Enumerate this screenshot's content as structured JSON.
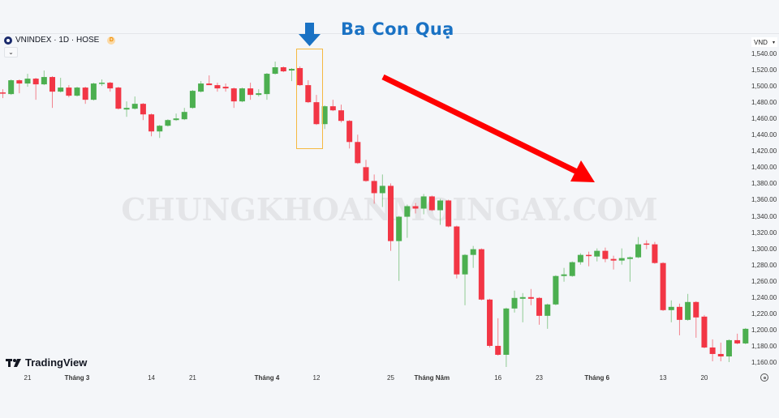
{
  "header": {
    "symbol": "VNINDEX · 1D · HOSE",
    "badge": "D",
    "collapse_icon": "chevron-down-icon",
    "currency": "VND"
  },
  "annotation": {
    "title": "Ba Con Quạ",
    "title_color": "#1a72c4",
    "highlight_box_color": "#f5b942",
    "trend_arrow_color": "#ff0000"
  },
  "watermark": "CHUNGKHOANMOINGAY.COM",
  "branding": {
    "logo_text": "TradingView"
  },
  "colors": {
    "up": "#4caf50",
    "down": "#f23645"
  },
  "chart_data": {
    "type": "candlestick",
    "ylim": [
      1160,
      1540
    ],
    "y_ticks": [
      "1,540.00",
      "1,520.00",
      "1,500.00",
      "1,480.00",
      "1,460.00",
      "1,440.00",
      "1,420.00",
      "1,400.00",
      "1,380.00",
      "1,360.00",
      "1,340.00",
      "1,320.00",
      "1,300.00",
      "1,280.00",
      "1,260.00",
      "1,240.00",
      "1,220.00",
      "1,200.00",
      "1,180.00",
      "1,160.00"
    ],
    "x_ticks": [
      {
        "label": "21",
        "index": 3,
        "major": false
      },
      {
        "label": "Tháng 3",
        "index": 9,
        "major": true
      },
      {
        "label": "14",
        "index": 18,
        "major": false
      },
      {
        "label": "21",
        "index": 23,
        "major": false
      },
      {
        "label": "Tháng 4",
        "index": 32,
        "major": true
      },
      {
        "label": "12",
        "index": 38,
        "major": false
      },
      {
        "label": "25",
        "index": 47,
        "major": false
      },
      {
        "label": "Tháng Năm",
        "index": 52,
        "major": true
      },
      {
        "label": "16",
        "index": 60,
        "major": false
      },
      {
        "label": "23",
        "index": 65,
        "major": false
      },
      {
        "label": "Tháng 6",
        "index": 72,
        "major": true
      },
      {
        "label": "13",
        "index": 80,
        "major": false
      },
      {
        "label": "20",
        "index": 85,
        "major": false
      }
    ],
    "ohlc": [
      [
        1493,
        1497,
        1486,
        1492
      ],
      [
        1491,
        1509,
        1490,
        1508
      ],
      [
        1508,
        1509,
        1492,
        1504
      ],
      [
        1504,
        1516,
        1500,
        1510
      ],
      [
        1510,
        1511,
        1484,
        1503
      ],
      [
        1503,
        1520,
        1502,
        1512
      ],
      [
        1512,
        1513,
        1474,
        1494
      ],
      [
        1494,
        1511,
        1493,
        1499
      ],
      [
        1499,
        1502,
        1487,
        1489
      ],
      [
        1489,
        1500,
        1488,
        1499
      ],
      [
        1499,
        1500,
        1479,
        1484
      ],
      [
        1484,
        1505,
        1483,
        1504
      ],
      [
        1504,
        1509,
        1501,
        1505
      ],
      [
        1505,
        1506,
        1494,
        1498
      ],
      [
        1499,
        1500,
        1472,
        1473
      ],
      [
        1472,
        1482,
        1463,
        1474
      ],
      [
        1473,
        1488,
        1472,
        1479
      ],
      [
        1479,
        1480,
        1459,
        1466
      ],
      [
        1466,
        1467,
        1439,
        1445
      ],
      [
        1445,
        1453,
        1437,
        1452
      ],
      [
        1452,
        1460,
        1451,
        1459
      ],
      [
        1459,
        1467,
        1458,
        1461
      ],
      [
        1460,
        1474,
        1459,
        1469
      ],
      [
        1474,
        1496,
        1473,
        1495
      ],
      [
        1494,
        1507,
        1493,
        1504
      ],
      [
        1504,
        1514,
        1503,
        1502
      ],
      [
        1502,
        1505,
        1494,
        1498
      ],
      [
        1500,
        1504,
        1494,
        1498
      ],
      [
        1498,
        1499,
        1474,
        1482
      ],
      [
        1482,
        1499,
        1481,
        1498
      ],
      [
        1498,
        1505,
        1484,
        1490
      ],
      [
        1490,
        1497,
        1488,
        1492
      ],
      [
        1491,
        1517,
        1484,
        1516
      ],
      [
        1516,
        1531,
        1515,
        1524
      ],
      [
        1524,
        1525,
        1518,
        1519
      ],
      [
        1520,
        1523,
        1507,
        1522
      ],
      [
        1523,
        1525,
        1501,
        1502
      ],
      [
        1502,
        1508,
        1480,
        1481
      ],
      [
        1481,
        1490,
        1453,
        1454
      ],
      [
        1454,
        1477,
        1448,
        1476
      ],
      [
        1476,
        1484,
        1470,
        1471
      ],
      [
        1471,
        1478,
        1456,
        1458
      ],
      [
        1458,
        1459,
        1424,
        1432
      ],
      [
        1432,
        1441,
        1405,
        1406
      ],
      [
        1401,
        1410,
        1383,
        1384
      ],
      [
        1384,
        1392,
        1356,
        1369
      ],
      [
        1369,
        1392,
        1352,
        1378
      ],
      [
        1378,
        1381,
        1298,
        1310
      ],
      [
        1310,
        1341,
        1261,
        1340
      ],
      [
        1340,
        1355,
        1314,
        1353
      ],
      [
        1353,
        1357,
        1344,
        1350
      ],
      [
        1350,
        1368,
        1343,
        1365
      ],
      [
        1365,
        1366,
        1347,
        1348
      ],
      [
        1348,
        1362,
        1330,
        1360
      ],
      [
        1360,
        1361,
        1327,
        1328
      ],
      [
        1328,
        1329,
        1264,
        1269
      ],
      [
        1269,
        1294,
        1231,
        1293
      ],
      [
        1293,
        1304,
        1277,
        1300
      ],
      [
        1300,
        1301,
        1237,
        1238
      ],
      [
        1238,
        1239,
        1179,
        1181
      ],
      [
        1181,
        1215,
        1169,
        1170
      ],
      [
        1170,
        1228,
        1155,
        1227
      ],
      [
        1227,
        1249,
        1222,
        1240
      ],
      [
        1239,
        1246,
        1210,
        1241
      ],
      [
        1241,
        1251,
        1231,
        1239
      ],
      [
        1240,
        1241,
        1207,
        1218
      ],
      [
        1218,
        1233,
        1202,
        1232
      ],
      [
        1232,
        1268,
        1231,
        1267
      ],
      [
        1267,
        1277,
        1260,
        1269
      ],
      [
        1267,
        1285,
        1266,
        1284
      ],
      [
        1284,
        1295,
        1281,
        1293
      ],
      [
        1293,
        1297,
        1279,
        1292
      ],
      [
        1291,
        1301,
        1285,
        1298
      ],
      [
        1298,
        1302,
        1284,
        1288
      ],
      [
        1288,
        1292,
        1275,
        1286
      ],
      [
        1286,
        1301,
        1281,
        1289
      ],
      [
        1288,
        1291,
        1260,
        1290
      ],
      [
        1290,
        1315,
        1289,
        1306
      ],
      [
        1307,
        1311,
        1300,
        1306
      ],
      [
        1306,
        1309,
        1282,
        1283
      ],
      [
        1283,
        1284,
        1224,
        1225
      ],
      [
        1225,
        1237,
        1210,
        1229
      ],
      [
        1229,
        1233,
        1194,
        1213
      ],
      [
        1213,
        1245,
        1212,
        1235
      ],
      [
        1235,
        1236,
        1191,
        1216
      ],
      [
        1217,
        1219,
        1178,
        1179
      ],
      [
        1179,
        1189,
        1162,
        1171
      ],
      [
        1171,
        1185,
        1162,
        1168
      ],
      [
        1168,
        1189,
        1161,
        1188
      ],
      [
        1188,
        1196,
        1183,
        1184
      ],
      [
        1184,
        1203,
        1183,
        1202
      ]
    ]
  }
}
